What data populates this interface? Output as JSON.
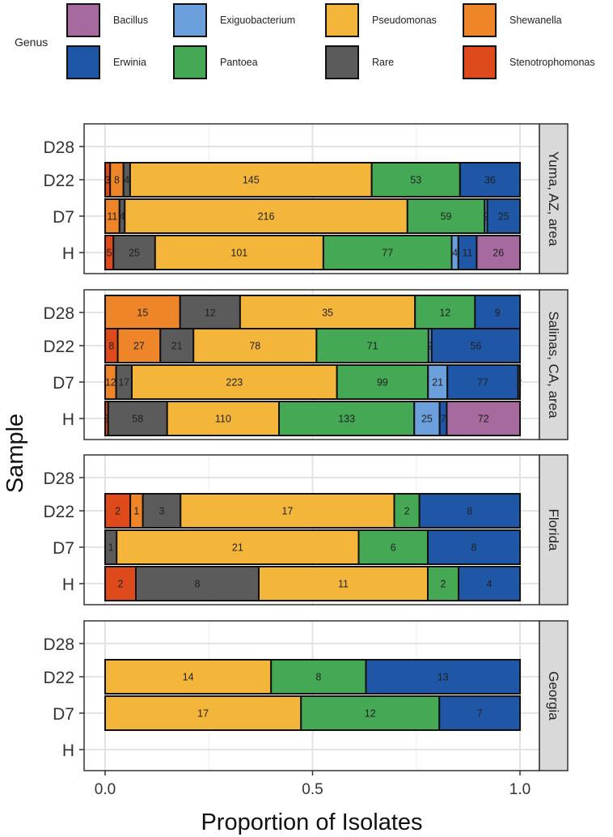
{
  "chart_data": {
    "type": "bar",
    "orientation": "horizontal",
    "stacked": true,
    "xlabel": "Proportion of Isolates",
    "ylabel": "Sample",
    "xlim": [
      0,
      1
    ],
    "xticks": [
      "0.0",
      "0.5",
      "1.0"
    ],
    "categories": [
      "D28",
      "D22",
      "D7",
      "H"
    ],
    "legend": {
      "title": "Genus",
      "position": "top",
      "entries": [
        {
          "name": "Bacillus",
          "color": "#A76A9E"
        },
        {
          "name": "Exiguobacterium",
          "color": "#6CA0DC"
        },
        {
          "name": "Pseudomonas",
          "color": "#F4B63A"
        },
        {
          "name": "Shewanella",
          "color": "#EE8529"
        },
        {
          "name": "Erwinia",
          "color": "#1F56A6"
        },
        {
          "name": "Pantoea",
          "color": "#45A854"
        },
        {
          "name": "Rare",
          "color": "#5B5B5B"
        },
        {
          "name": "Stenotrophomonas",
          "color": "#DF4A1C"
        }
      ]
    },
    "stack_order": [
      "Stenotrophomonas",
      "Shewanella",
      "Rare",
      "Pseudomonas",
      "Pantoea",
      "Exiguobacterium",
      "Erwinia",
      "Bacillus"
    ],
    "facets": [
      {
        "name": "Yuma, AZ, area",
        "samples": [
          {
            "sample": "D28",
            "segments": []
          },
          {
            "sample": "D22",
            "segments": [
              {
                "genus": "Stenotrophomonas",
                "count": 3,
                "label": "3"
              },
              {
                "genus": "Shewanella",
                "count": 8,
                "label": "8"
              },
              {
                "genus": "Rare",
                "count": 4,
                "label": "4"
              },
              {
                "genus": "Pseudomonas",
                "count": 145,
                "label": "145"
              },
              {
                "genus": "Pantoea",
                "count": 53,
                "label": "53"
              },
              {
                "genus": "Erwinia",
                "count": 36,
                "label": "36"
              }
            ]
          },
          {
            "sample": "D7",
            "segments": [
              {
                "genus": "Shewanella",
                "count": 11,
                "label": "11"
              },
              {
                "genus": "Rare",
                "count": 4,
                "label": "4"
              },
              {
                "genus": "Pseudomonas",
                "count": 216,
                "label": "216"
              },
              {
                "genus": "Pantoea",
                "count": 59,
                "label": "59"
              },
              {
                "genus": "Exiguobacterium",
                "count": 2,
                "label": "2"
              },
              {
                "genus": "Erwinia",
                "count": 25,
                "label": "25"
              }
            ]
          },
          {
            "sample": "H",
            "segments": [
              {
                "genus": "Stenotrophomonas",
                "count": 5,
                "label": "5"
              },
              {
                "genus": "Rare",
                "count": 25,
                "label": "25"
              },
              {
                "genus": "Pseudomonas",
                "count": 101,
                "label": "101"
              },
              {
                "genus": "Pantoea",
                "count": 77,
                "label": "77"
              },
              {
                "genus": "Exiguobacterium",
                "count": 4,
                "label": "4"
              },
              {
                "genus": "Erwinia",
                "count": 11,
                "label": "11"
              },
              {
                "genus": "Bacillus",
                "count": 26,
                "label": "26"
              }
            ]
          }
        ]
      },
      {
        "name": "Salinas, CA, area",
        "samples": [
          {
            "sample": "D28",
            "segments": [
              {
                "genus": "Shewanella",
                "count": 15,
                "label": "15"
              },
              {
                "genus": "Rare",
                "count": 12,
                "label": "12"
              },
              {
                "genus": "Pseudomonas",
                "count": 35,
                "label": "35"
              },
              {
                "genus": "Pantoea",
                "count": 12,
                "label": "12"
              },
              {
                "genus": "Erwinia",
                "count": 9,
                "label": "9"
              }
            ]
          },
          {
            "sample": "D22",
            "segments": [
              {
                "genus": "Stenotrophomonas",
                "count": 8,
                "label": "8"
              },
              {
                "genus": "Shewanella",
                "count": 27,
                "label": "27"
              },
              {
                "genus": "Rare",
                "count": 21,
                "label": "21"
              },
              {
                "genus": "Pseudomonas",
                "count": 78,
                "label": "78"
              },
              {
                "genus": "Pantoea",
                "count": 71,
                "label": "71"
              },
              {
                "genus": "Exiguobacterium",
                "count": 2,
                "label": "2"
              },
              {
                "genus": "Erwinia",
                "count": 56,
                "label": "56"
              }
            ]
          },
          {
            "sample": "D7",
            "segments": [
              {
                "genus": "Shewanella",
                "count": 12,
                "label": "12"
              },
              {
                "genus": "Rare",
                "count": 17,
                "label": "17"
              },
              {
                "genus": "Pseudomonas",
                "count": 223,
                "label": "223"
              },
              {
                "genus": "Pantoea",
                "count": 99,
                "label": "99"
              },
              {
                "genus": "Exiguobacterium",
                "count": 21,
                "label": "21"
              },
              {
                "genus": "Erwinia",
                "count": 77,
                "label": "77"
              },
              {
                "genus": "Bacillus",
                "count": 2,
                "label": "2"
              }
            ]
          },
          {
            "sample": "H",
            "segments": [
              {
                "genus": "Stenotrophomonas",
                "count": 3,
                "label": "3"
              },
              {
                "genus": "Rare",
                "count": 58,
                "label": "58"
              },
              {
                "genus": "Pseudomonas",
                "count": 110,
                "label": "110"
              },
              {
                "genus": "Pantoea",
                "count": 133,
                "label": "133"
              },
              {
                "genus": "Exiguobacterium",
                "count": 25,
                "label": "25"
              },
              {
                "genus": "Erwinia",
                "count": 7,
                "label": "7"
              },
              {
                "genus": "Bacillus",
                "count": 72,
                "label": "72"
              }
            ]
          }
        ]
      },
      {
        "name": "Florida",
        "samples": [
          {
            "sample": "D28",
            "segments": []
          },
          {
            "sample": "D22",
            "segments": [
              {
                "genus": "Stenotrophomonas",
                "count": 2,
                "label": "2"
              },
              {
                "genus": "Shewanella",
                "count": 1,
                "label": "1"
              },
              {
                "genus": "Rare",
                "count": 3,
                "label": "3"
              },
              {
                "genus": "Pseudomonas",
                "count": 17,
                "label": "17"
              },
              {
                "genus": "Pantoea",
                "count": 2,
                "label": "2"
              },
              {
                "genus": "Erwinia",
                "count": 8,
                "label": "8"
              }
            ]
          },
          {
            "sample": "D7",
            "segments": [
              {
                "genus": "Rare",
                "count": 1,
                "label": "1"
              },
              {
                "genus": "Pseudomonas",
                "count": 21,
                "label": "21"
              },
              {
                "genus": "Pantoea",
                "count": 6,
                "label": "6"
              },
              {
                "genus": "Erwinia",
                "count": 8,
                "label": "8"
              }
            ]
          },
          {
            "sample": "H",
            "segments": [
              {
                "genus": "Stenotrophomonas",
                "count": 2,
                "label": "2"
              },
              {
                "genus": "Rare",
                "count": 8,
                "label": "8"
              },
              {
                "genus": "Pseudomonas",
                "count": 11,
                "label": "11"
              },
              {
                "genus": "Pantoea",
                "count": 2,
                "label": "2"
              },
              {
                "genus": "Erwinia",
                "count": 4,
                "label": "4"
              }
            ]
          }
        ]
      },
      {
        "name": "Georgia",
        "samples": [
          {
            "sample": "D28",
            "segments": []
          },
          {
            "sample": "D22",
            "segments": [
              {
                "genus": "Pseudomonas",
                "count": 14,
                "label": "14"
              },
              {
                "genus": "Pantoea",
                "count": 8,
                "label": "8"
              },
              {
                "genus": "Erwinia",
                "count": 13,
                "label": "13"
              }
            ]
          },
          {
            "sample": "D7",
            "segments": [
              {
                "genus": "Pseudomonas",
                "count": 17,
                "label": "17"
              },
              {
                "genus": "Pantoea",
                "count": 12,
                "label": "12"
              },
              {
                "genus": "Erwinia",
                "count": 7,
                "label": "7"
              }
            ]
          },
          {
            "sample": "H",
            "segments": []
          }
        ]
      }
    ]
  }
}
